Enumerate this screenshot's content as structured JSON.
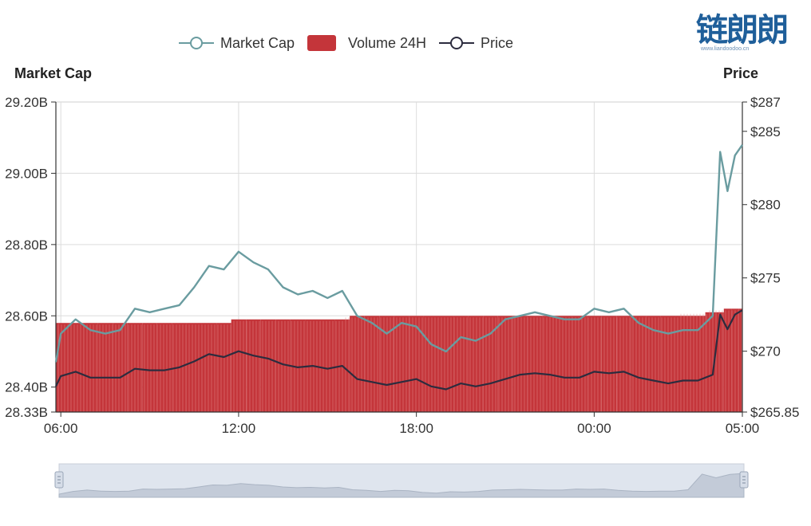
{
  "legend": [
    {
      "name": "Market Cap",
      "color": "#6a9ca0",
      "kind": "line"
    },
    {
      "name": "Volume 24H",
      "color": "#c4353a",
      "kind": "bar"
    },
    {
      "name": "Price",
      "color": "#2c2c3e",
      "kind": "line"
    }
  ],
  "watermark": {
    "text": "链朗朗",
    "sub": "www.liandoodoo.cn"
  },
  "chart_data": {
    "type": "line",
    "left_axis_title": "Market Cap",
    "right_axis_title": "Price",
    "x_ticks": [
      "06:00",
      "12:00",
      "18:00",
      "00:00",
      "05:00"
    ],
    "x_range": [
      "05:50",
      "05:00 (+1d)"
    ],
    "left_axis": {
      "range": [
        "28.33B",
        "29.20B"
      ],
      "min": 28.33,
      "max": 29.2,
      "ticks": [
        "28.33B",
        "28.40B",
        "28.60B",
        "28.80B",
        "29.00B",
        "29.20B"
      ]
    },
    "right_axis": {
      "range": [
        "$265.85",
        "$287"
      ],
      "min": 265.85,
      "max": 287,
      "ticks": [
        "$265.85",
        "$270",
        "$275",
        "$280",
        "$285",
        "$287"
      ]
    },
    "x": [
      "05:50",
      "06:00",
      "06:30",
      "07:00",
      "07:30",
      "08:00",
      "08:30",
      "09:00",
      "09:30",
      "10:00",
      "10:30",
      "11:00",
      "11:30",
      "12:00",
      "12:30",
      "13:00",
      "13:30",
      "14:00",
      "14:30",
      "15:00",
      "15:30",
      "16:00",
      "16:30",
      "17:00",
      "17:30",
      "18:00",
      "18:30",
      "19:00",
      "19:30",
      "20:00",
      "20:30",
      "21:00",
      "21:30",
      "22:00",
      "22:30",
      "23:00",
      "23:30",
      "00:00",
      "00:30",
      "01:00",
      "01:30",
      "02:00",
      "02:30",
      "03:00",
      "03:30",
      "04:00",
      "04:15",
      "04:30",
      "04:45",
      "05:00"
    ],
    "series": [
      {
        "name": "Market Cap",
        "axis": "left",
        "unit": "B",
        "values": [
          28.47,
          28.55,
          28.59,
          28.56,
          28.55,
          28.56,
          28.62,
          28.61,
          28.62,
          28.63,
          28.68,
          28.74,
          28.73,
          28.78,
          28.75,
          28.73,
          28.68,
          28.66,
          28.67,
          28.65,
          28.67,
          28.6,
          28.58,
          28.55,
          28.58,
          28.57,
          28.52,
          28.5,
          28.54,
          28.53,
          28.55,
          28.59,
          28.6,
          28.61,
          28.6,
          28.59,
          28.59,
          28.62,
          28.61,
          28.62,
          28.58,
          28.56,
          28.55,
          28.56,
          28.56,
          28.6,
          29.06,
          28.95,
          29.05,
          29.08
        ]
      },
      {
        "name": "Price",
        "axis": "right",
        "unit": "$",
        "values": [
          267.6,
          268.3,
          268.6,
          268.2,
          268.2,
          268.2,
          268.8,
          268.7,
          268.7,
          268.9,
          269.3,
          269.8,
          269.6,
          270.0,
          269.7,
          269.5,
          269.1,
          268.9,
          269.0,
          268.8,
          269.0,
          268.1,
          267.9,
          267.7,
          267.9,
          268.1,
          267.6,
          267.4,
          267.8,
          267.6,
          267.8,
          268.1,
          268.4,
          268.5,
          268.4,
          268.2,
          268.2,
          268.6,
          268.5,
          268.6,
          268.2,
          268.0,
          267.8,
          268.0,
          268.0,
          268.4,
          272.5,
          271.5,
          272.5,
          272.8
        ]
      },
      {
        "name": "Volume 24H",
        "axis": "left",
        "type": "bar",
        "unit": "B",
        "values": [
          28.58,
          28.58,
          28.58,
          28.58,
          28.58,
          28.58,
          28.58,
          28.58,
          28.58,
          28.58,
          28.58,
          28.58,
          28.58,
          28.59,
          28.59,
          28.59,
          28.59,
          28.59,
          28.59,
          28.59,
          28.59,
          28.6,
          28.6,
          28.6,
          28.6,
          28.6,
          28.6,
          28.6,
          28.6,
          28.6,
          28.6,
          28.6,
          28.6,
          28.6,
          28.6,
          28.6,
          28.6,
          28.6,
          28.6,
          28.6,
          28.6,
          28.6,
          28.6,
          28.6,
          28.6,
          28.61,
          28.61,
          28.62,
          28.62,
          28.62
        ]
      }
    ],
    "grid": true,
    "legend_position": "top-center",
    "data_zoom": {
      "start_percent": 0,
      "end_percent": 100
    }
  }
}
